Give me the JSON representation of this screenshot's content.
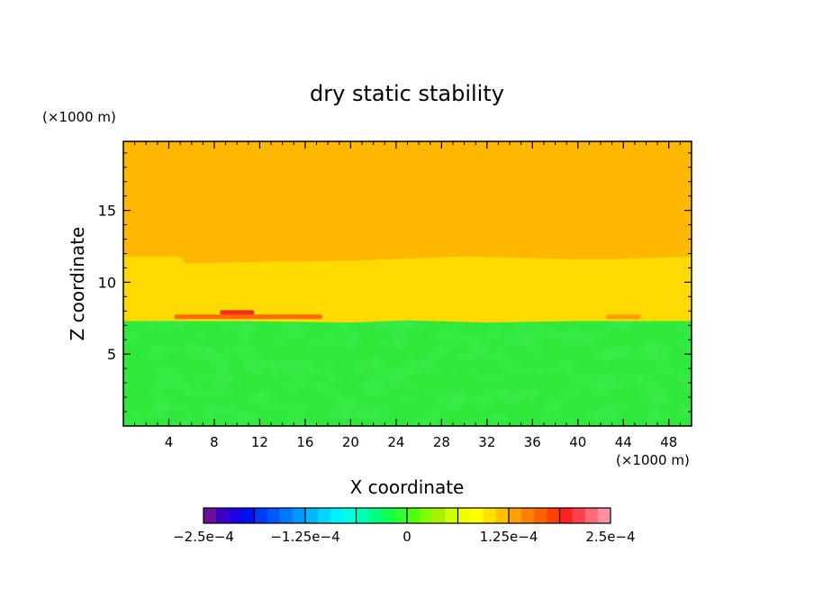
{
  "chart_data": {
    "type": "heatmap",
    "title": "dry static stability",
    "xlabel": "X coordinate",
    "ylabel": "Z coordinate",
    "x_unit": "(×1000 m)",
    "y_unit": "(×1000 m)",
    "xlim": [
      0,
      50
    ],
    "ylim": [
      0,
      19.8
    ],
    "x_ticks": [
      4,
      8,
      12,
      16,
      20,
      24,
      28,
      32,
      36,
      40,
      44,
      48
    ],
    "y_ticks": [
      5,
      10,
      15
    ],
    "x_tick_labels": [
      "4",
      "8",
      "12",
      "16",
      "20",
      "24",
      "28",
      "32",
      "36",
      "40",
      "44",
      "48"
    ],
    "y_tick_labels": [
      "5",
      "10",
      "15"
    ],
    "regions": [
      {
        "level": "troposphere",
        "z_top_profile": [
          [
            0,
            7.3
          ],
          [
            10,
            7.3
          ],
          [
            20,
            7.2
          ],
          [
            25,
            7.35
          ],
          [
            32,
            7.2
          ],
          [
            40,
            7.3
          ],
          [
            50,
            7.3
          ]
        ],
        "value": 1.5e-05,
        "color": "#2fe83a"
      },
      {
        "level": "mid",
        "z_top_profile": [
          [
            0,
            11.8
          ],
          [
            5,
            11.8
          ],
          [
            5.5,
            11.3
          ],
          [
            10,
            11.4
          ],
          [
            20,
            11.5
          ],
          [
            30,
            11.8
          ],
          [
            40,
            11.6
          ],
          [
            43,
            11.6
          ],
          [
            50,
            11.8
          ]
        ],
        "value": 0.00015,
        "color": "#ffda00"
      },
      {
        "level": "upper",
        "value": 0.000165,
        "color": "#ffb700"
      }
    ],
    "patches": [
      {
        "x_range": [
          4.5,
          17.5
        ],
        "z": 7.6,
        "value": 0.000205,
        "color": "#ff6a00"
      },
      {
        "x_range": [
          8.5,
          11.5
        ],
        "z": 7.9,
        "value": 0.000225,
        "color": "#f03020"
      },
      {
        "x_range": [
          42.5,
          45.5
        ],
        "z": 7.6,
        "value": 0.00018,
        "color": "#ff9a00"
      }
    ],
    "colorbar": {
      "min": -0.00025,
      "max": 0.00025,
      "tick_labels": [
        "−2.5e−4",
        "−1.25e−4",
        "0",
        "1.25e−4",
        "2.5e−4"
      ],
      "tick_values": [
        -0.00025,
        -0.000125,
        0,
        0.000125,
        0.00025
      ],
      "colors": [
        "#6a0f9c",
        "#3d00c8",
        "#1a00e0",
        "#0010f0",
        "#0038ff",
        "#0058ff",
        "#0078ff",
        "#0098ff",
        "#00b8ff",
        "#00d8ff",
        "#00f0ff",
        "#00ffe0",
        "#00ffb0",
        "#00ff80",
        "#10ff50",
        "#30ff30",
        "#50ff10",
        "#80ff00",
        "#a8f000",
        "#d0ff00",
        "#f0ff00",
        "#ffff00",
        "#ffe000",
        "#ffc000",
        "#ffa000",
        "#ff8000",
        "#ff6000",
        "#ff4000",
        "#ff2020",
        "#ff4050",
        "#ff6a78",
        "#ff90a0"
      ]
    }
  }
}
